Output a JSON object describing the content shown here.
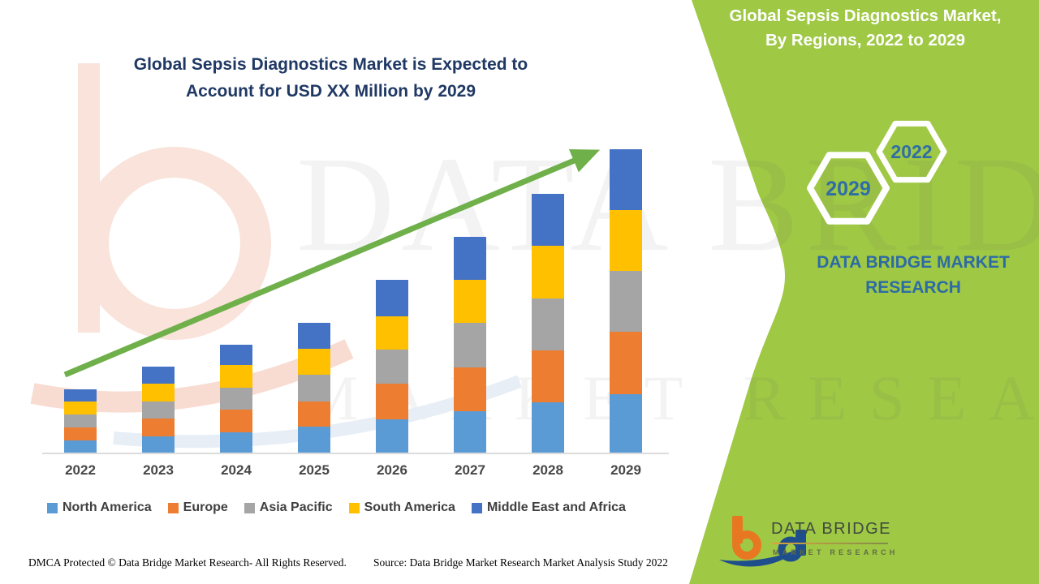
{
  "band": {
    "title_line1": "Global Sepsis Diagnostics Market,",
    "title_line2": "By Regions, 2022 to 2029",
    "hex_large_year": "2029",
    "hex_small_year": "2022",
    "brand_line1": "DATA BRIDGE MARKET",
    "brand_line2": "RESEARCH"
  },
  "chart": {
    "title_line1": "Global Sepsis Diagnostics Market is Expected to",
    "title_line2": "Account for USD XX Million by 2029"
  },
  "chart_data": {
    "type": "bar",
    "subtype": "stacked-column",
    "title": "Global Sepsis Diagnostics Market is Expected to Account for USD XX Million by 2029",
    "categories": [
      "2022",
      "2023",
      "2024",
      "2025",
      "2026",
      "2027",
      "2028",
      "2029"
    ],
    "series": [
      {
        "name": "North America",
        "color": "#5B9BD5",
        "values": [
          16,
          21,
          26,
          33,
          42,
          52,
          63,
          73
        ]
      },
      {
        "name": "Europe",
        "color": "#ED7D31",
        "values": [
          16,
          22,
          28,
          31,
          44,
          54,
          64,
          77
        ]
      },
      {
        "name": "Asia Pacific",
        "color": "#A5A5A5",
        "values": [
          16,
          21,
          27,
          33,
          42,
          55,
          64,
          75
        ]
      },
      {
        "name": "South America",
        "color": "#FFC000",
        "values": [
          16,
          22,
          28,
          32,
          41,
          53,
          65,
          75
        ]
      },
      {
        "name": "Middle East and Africa",
        "color": "#4472C4",
        "values": [
          15,
          21,
          25,
          32,
          45,
          53,
          64,
          75
        ]
      }
    ],
    "stack_totals": [
      79,
      107,
      134,
      161,
      214,
      267,
      320,
      375
    ],
    "ylabel": "",
    "xlabel": "",
    "value_axis_visible": false,
    "units": "USD Million (values shown as XX, estimated relative units)",
    "grid": false,
    "legend_position": "bottom",
    "trend_arrow": "upward from 2022 to 2029",
    "accent_green": "#9fc845",
    "arrow_color": "#6fb04b"
  },
  "watermark": {
    "line1": "DATA BRIDGE",
    "line2": "MARKET RESEARCH"
  },
  "footer": {
    "dmca": "DMCA Protected © Data Bridge Market Research- All Rights Reserved.",
    "source": "Source: Data Bridge Market Research Market Analysis Study 2022"
  },
  "logo": {
    "name": "DATA BRIDGE",
    "tagline": "MARKET RESEARCH"
  }
}
